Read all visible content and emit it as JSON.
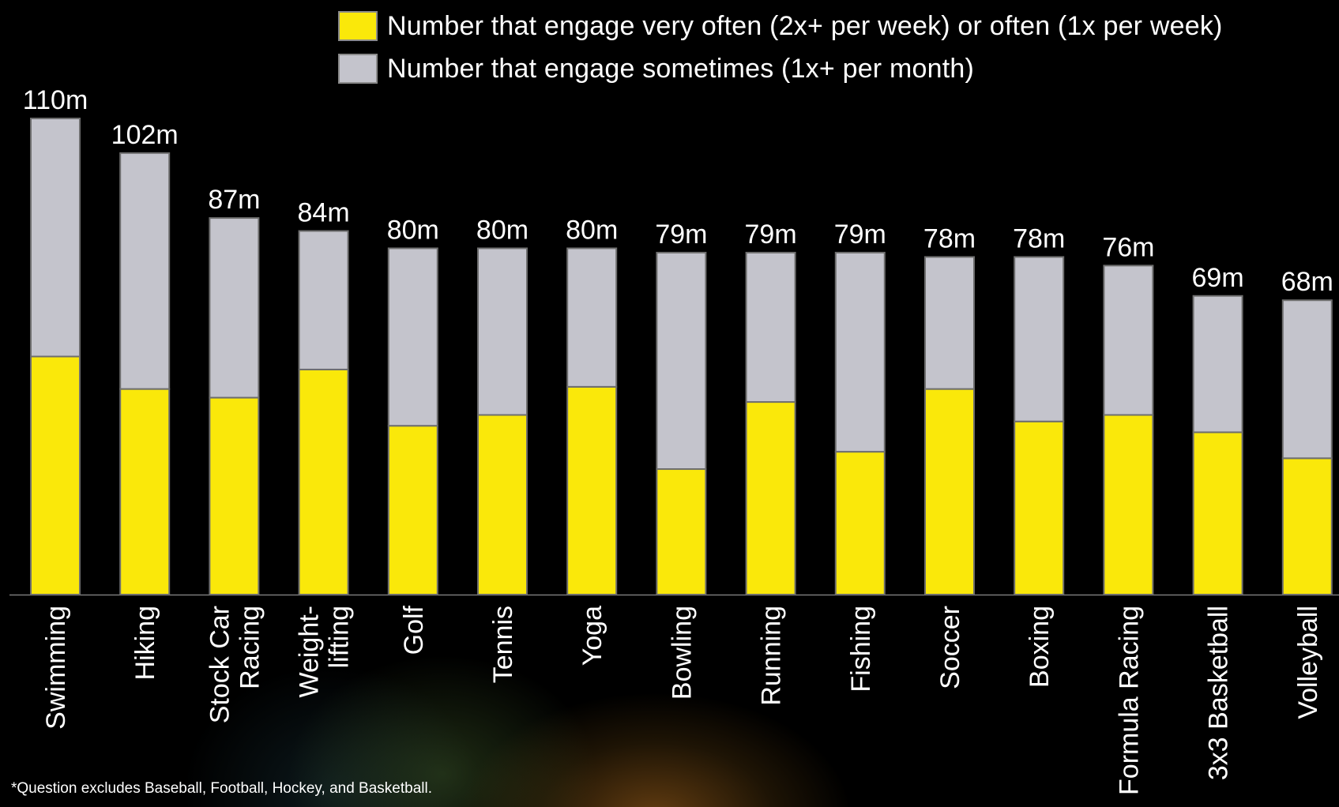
{
  "legend": {
    "often": {
      "label": "Number that engage very often (2x+ per week) or often (1x per week)",
      "color": "#FAE80A"
    },
    "sometimes": {
      "label": "Number that engage sometimes (1x+ per month)",
      "color": "#C4C4CC"
    }
  },
  "footnote": "*Question excludes Baseball, Football, Hockey, and Basketball.",
  "chart_data": {
    "type": "bar",
    "stacked": true,
    "orientation": "vertical",
    "unit": "m",
    "categories": [
      [
        "Swimming"
      ],
      [
        "Hiking"
      ],
      [
        "Stock Car",
        "Racing"
      ],
      [
        "Weight-",
        "lifting"
      ],
      [
        "Golf"
      ],
      [
        "Tennis"
      ],
      [
        "Yoga"
      ],
      [
        "Bowling"
      ],
      [
        "Running"
      ],
      [
        "Fishing"
      ],
      [
        "Soccer"
      ],
      [
        "Boxing"
      ],
      [
        "Formula Racing"
      ],
      [
        "3x3 Basketball"
      ],
      [
        "Volleyball"
      ]
    ],
    "series": [
      {
        "name": "Number that engage very often (2x+ per week) or often (1x per week)",
        "color": "#FAE80A",
        "values": [
          55,
          47.5,
          45.5,
          52,
          39,
          41.5,
          48,
          29,
          44.5,
          33,
          47.5,
          40,
          41.5,
          37.5,
          31.5
        ]
      },
      {
        "name": "Number that engage sometimes (1x+ per month)",
        "color": "#C4C4CC",
        "values": [
          55,
          54.5,
          41.5,
          32,
          41,
          38.5,
          32,
          50,
          34.5,
          46,
          30.5,
          38,
          34.5,
          31.5,
          36.5
        ]
      }
    ],
    "totals": [
      110,
      102,
      87,
      84,
      80,
      80,
      80,
      79,
      79,
      79,
      78,
      78,
      76,
      69,
      68
    ],
    "total_labels": [
      "110m",
      "102m",
      "87m",
      "84m",
      "80m",
      "80m",
      "80m",
      "79m",
      "79m",
      "79m",
      "78m",
      "78m",
      "76m",
      "69m",
      "68m"
    ],
    "ylim": [
      0,
      110
    ],
    "grid": false,
    "legend_position": "top"
  }
}
